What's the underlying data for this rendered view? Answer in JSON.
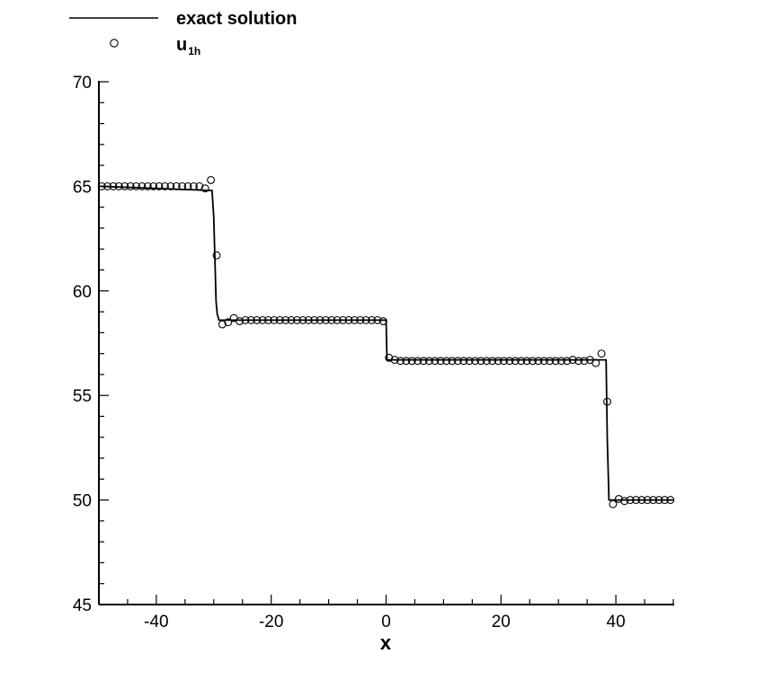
{
  "chart_data": {
    "type": "line",
    "xlabel": "x",
    "ylabel": "",
    "xlim": [
      -50,
      50
    ],
    "ylim": [
      45,
      70
    ],
    "xticks": [
      -40,
      -20,
      0,
      20,
      40
    ],
    "yticks": [
      45,
      50,
      55,
      60,
      65,
      70
    ],
    "grid": false,
    "legend_position": "top-left",
    "series": [
      {
        "name": "exact solution",
        "style": "line",
        "color": "#000000",
        "x": [
          -50,
          -30.3,
          -30.0,
          -29.8,
          -29.6,
          -29.4,
          -29.1,
          0.0,
          0.15,
          38.3,
          38.5,
          38.8,
          50
        ],
        "y": [
          65.0,
          64.8,
          63.5,
          61.5,
          59.5,
          58.9,
          58.6,
          58.6,
          56.7,
          56.7,
          53.0,
          50.0,
          50.0
        ]
      },
      {
        "name": "u",
        "name_subscript": "1h",
        "style": "markers",
        "marker": "open-circle",
        "color": "#000000",
        "x": [
          -49.5,
          -48.5,
          -47.5,
          -46.5,
          -45.5,
          -44.5,
          -43.5,
          -42.5,
          -41.5,
          -40.5,
          -39.5,
          -38.5,
          -37.5,
          -36.5,
          -35.5,
          -34.5,
          -33.5,
          -32.5,
          -31.5,
          -30.5,
          -29.5,
          -28.5,
          -27.5,
          -26.5,
          -25.5,
          -24.5,
          -23.5,
          -22.5,
          -21.5,
          -20.5,
          -19.5,
          -18.5,
          -17.5,
          -16.5,
          -15.5,
          -14.5,
          -13.5,
          -12.5,
          -11.5,
          -10.5,
          -9.5,
          -8.5,
          -7.5,
          -6.5,
          -5.5,
          -4.5,
          -3.5,
          -2.5,
          -1.5,
          -0.5,
          0.5,
          1.5,
          2.5,
          3.5,
          4.5,
          5.5,
          6.5,
          7.5,
          8.5,
          9.5,
          10.5,
          11.5,
          12.5,
          13.5,
          14.5,
          15.5,
          16.5,
          17.5,
          18.5,
          19.5,
          20.5,
          21.5,
          22.5,
          23.5,
          24.5,
          25.5,
          26.5,
          27.5,
          28.5,
          29.5,
          30.5,
          31.5,
          32.5,
          33.5,
          34.5,
          35.5,
          36.5,
          37.5,
          38.5,
          39.5,
          40.5,
          41.5,
          42.5,
          43.5,
          44.5,
          45.5,
          46.5,
          47.5,
          48.5,
          49.5
        ],
        "y": [
          65.0,
          65.0,
          65.0,
          65.0,
          65.0,
          65.0,
          65.0,
          65.0,
          65.0,
          65.0,
          65.0,
          65.0,
          65.0,
          65.0,
          65.0,
          65.0,
          65.0,
          65.0,
          64.9,
          65.3,
          61.7,
          58.4,
          58.5,
          58.7,
          58.55,
          58.6,
          58.6,
          58.6,
          58.6,
          58.6,
          58.6,
          58.6,
          58.6,
          58.6,
          58.6,
          58.6,
          58.6,
          58.6,
          58.6,
          58.6,
          58.6,
          58.6,
          58.6,
          58.6,
          58.6,
          58.6,
          58.6,
          58.6,
          58.6,
          58.55,
          56.8,
          56.7,
          56.65,
          56.65,
          56.65,
          56.65,
          56.65,
          56.65,
          56.65,
          56.65,
          56.65,
          56.65,
          56.65,
          56.65,
          56.65,
          56.65,
          56.65,
          56.65,
          56.65,
          56.65,
          56.65,
          56.65,
          56.65,
          56.65,
          56.65,
          56.65,
          56.65,
          56.65,
          56.65,
          56.65,
          56.65,
          56.65,
          56.7,
          56.65,
          56.65,
          56.7,
          56.55,
          57.0,
          54.7,
          49.8,
          50.05,
          49.95,
          50.0,
          50.0,
          50.0,
          50.0,
          50.0,
          50.0,
          50.0,
          50.0
        ]
      }
    ]
  }
}
